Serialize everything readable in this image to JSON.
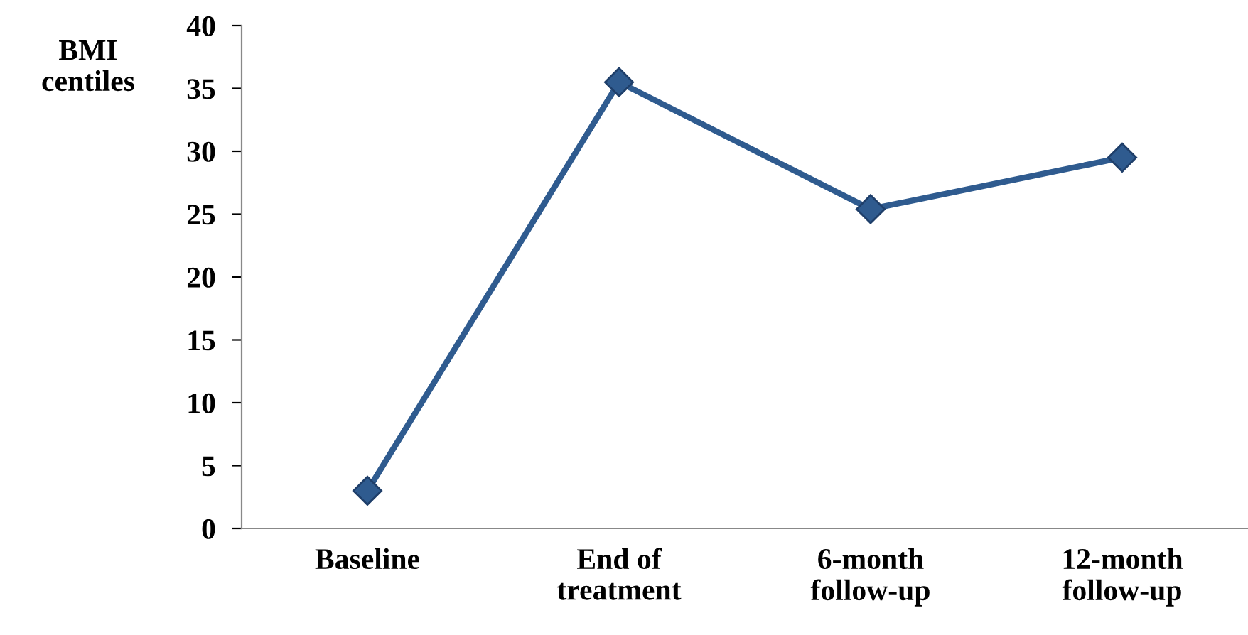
{
  "chart_data": {
    "type": "line",
    "ylabel": "BMI\ncentiles",
    "categories": [
      "Baseline",
      "End of\ntreatment",
      "6-month\nfollow-up",
      "12-month\nfollow-up"
    ],
    "series": [
      {
        "color": "#2f5b8f",
        "values": [
          3,
          35.5,
          25.4,
          29.5
        ]
      }
    ],
    "ylim": [
      0,
      40
    ],
    "yticks": [
      0,
      5,
      10,
      15,
      20,
      25,
      30,
      35,
      40
    ],
    "grid": false,
    "legend": false,
    "marker": "diamond",
    "line_style": "solid"
  }
}
